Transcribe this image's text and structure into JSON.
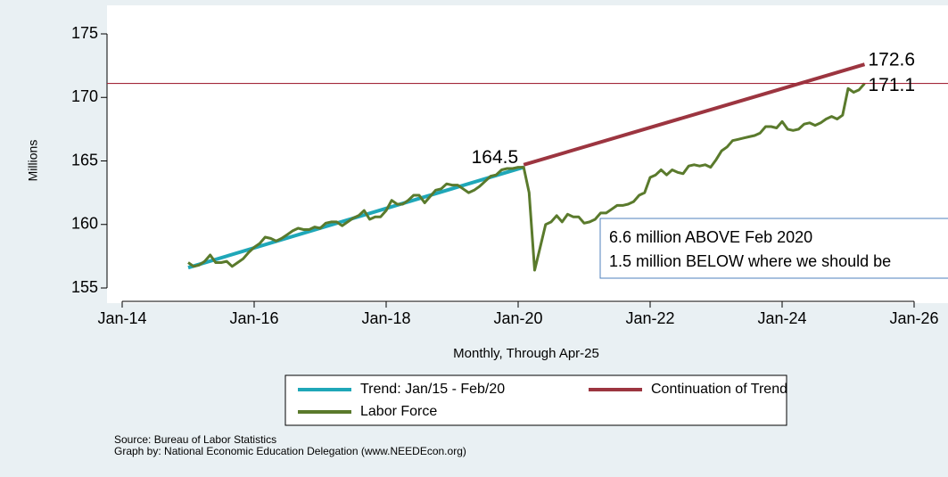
{
  "chart_data": {
    "type": "line",
    "ylabel": "Millions",
    "xlabel": "Monthly, Through Apr-25",
    "ylim": [
      155,
      175
    ],
    "yticks": [
      155,
      160,
      165,
      170,
      175
    ],
    "xlim": [
      "Jan-14",
      "Jan-26"
    ],
    "xticks": [
      "Jan-14",
      "Jan-16",
      "Jan-18",
      "Jan-20",
      "Jan-22",
      "Jan-24",
      "Jan-26"
    ],
    "hline": {
      "value": 171.1,
      "color": "#a3283a"
    },
    "series": [
      {
        "name": "Trend: Jan/15 - Feb/20",
        "color": "#1fa7b8",
        "x": [
          "Jan-15",
          "Feb-20"
        ],
        "values": [
          156.6,
          164.5
        ]
      },
      {
        "name": "Continuation of Trend",
        "color": "#9c3540",
        "x": [
          "Feb-20",
          "Apr-25"
        ],
        "values": [
          164.7,
          172.6
        ]
      },
      {
        "name": "Labor Force",
        "color": "#5a7a2c",
        "x": [
          "Jan-15",
          "Feb-15",
          "Mar-15",
          "Apr-15",
          "May-15",
          "Jun-15",
          "Jul-15",
          "Aug-15",
          "Sep-15",
          "Oct-15",
          "Nov-15",
          "Dec-15",
          "Jan-16",
          "Feb-16",
          "Mar-16",
          "Apr-16",
          "May-16",
          "Jun-16",
          "Jul-16",
          "Aug-16",
          "Sep-16",
          "Oct-16",
          "Nov-16",
          "Dec-16",
          "Jan-17",
          "Feb-17",
          "Mar-17",
          "Apr-17",
          "May-17",
          "Jun-17",
          "Jul-17",
          "Aug-17",
          "Sep-17",
          "Oct-17",
          "Nov-17",
          "Dec-17",
          "Jan-18",
          "Feb-18",
          "Mar-18",
          "Apr-18",
          "May-18",
          "Jun-18",
          "Jul-18",
          "Aug-18",
          "Sep-18",
          "Oct-18",
          "Nov-18",
          "Dec-18",
          "Jan-19",
          "Feb-19",
          "Mar-19",
          "Apr-19",
          "May-19",
          "Jun-19",
          "Jul-19",
          "Aug-19",
          "Sep-19",
          "Oct-19",
          "Nov-19",
          "Dec-19",
          "Jan-20",
          "Feb-20",
          "Mar-20",
          "Apr-20",
          "May-20",
          "Jun-20",
          "Jul-20",
          "Aug-20",
          "Sep-20",
          "Oct-20",
          "Nov-20",
          "Dec-20",
          "Jan-21",
          "Feb-21",
          "Mar-21",
          "Apr-21",
          "May-21",
          "Jun-21",
          "Jul-21",
          "Aug-21",
          "Sep-21",
          "Oct-21",
          "Nov-21",
          "Dec-21",
          "Jan-22",
          "Feb-22",
          "Mar-22",
          "Apr-22",
          "May-22",
          "Jun-22",
          "Jul-22",
          "Aug-22",
          "Sep-22",
          "Oct-22",
          "Nov-22",
          "Dec-22",
          "Jan-23",
          "Feb-23",
          "Mar-23",
          "Apr-23",
          "May-23",
          "Jun-23",
          "Jul-23",
          "Aug-23",
          "Sep-23",
          "Oct-23",
          "Nov-23",
          "Dec-23",
          "Jan-24",
          "Feb-24",
          "Mar-24",
          "Apr-24",
          "May-24",
          "Jun-24",
          "Jul-24",
          "Aug-24",
          "Sep-24",
          "Oct-24",
          "Nov-24",
          "Dec-24",
          "Jan-25",
          "Feb-25",
          "Mar-25",
          "Apr-25"
        ],
        "values": [
          157.0,
          156.7,
          156.8,
          157.1,
          157.6,
          157.0,
          157.0,
          157.1,
          156.7,
          157.0,
          157.3,
          157.8,
          158.2,
          158.5,
          159.0,
          158.9,
          158.7,
          158.9,
          159.2,
          159.5,
          159.7,
          159.6,
          159.6,
          159.8,
          159.7,
          160.1,
          160.2,
          160.2,
          159.9,
          160.2,
          160.5,
          160.7,
          161.1,
          160.4,
          160.6,
          160.6,
          161.1,
          161.9,
          161.6,
          161.6,
          161.9,
          162.3,
          162.3,
          161.7,
          162.2,
          162.7,
          162.8,
          163.2,
          163.1,
          163.1,
          162.8,
          162.5,
          162.7,
          163.0,
          163.4,
          163.8,
          163.9,
          164.3,
          164.4,
          164.4,
          164.5,
          164.5,
          162.5,
          156.4,
          158.2,
          160.0,
          160.2,
          160.7,
          160.2,
          160.8,
          160.6,
          160.6,
          160.1,
          160.2,
          160.4,
          160.9,
          160.9,
          161.2,
          161.5,
          161.5,
          161.6,
          161.8,
          162.3,
          162.5,
          163.7,
          163.9,
          164.3,
          163.9,
          164.3,
          164.1,
          164.0,
          164.6,
          164.7,
          164.6,
          164.7,
          164.5,
          165.1,
          165.8,
          166.1,
          166.6,
          166.7,
          166.8,
          166.9,
          167.0,
          167.2,
          167.7,
          167.7,
          167.6,
          168.1,
          167.5,
          167.4,
          167.5,
          167.9,
          168.0,
          167.8,
          168.0,
          168.3,
          168.5,
          168.3,
          168.6,
          170.7,
          170.4,
          170.6,
          171.1
        ]
      }
    ],
    "annotations": [
      "6.6 million ABOVE Feb 2020",
      "1.5 million BELOW where we should be"
    ],
    "source": [
      "Source: Bureau of Labor Statistics",
      "Graph by: National Economic Education Delegation (www.NEEDEcon.org)"
    ]
  }
}
